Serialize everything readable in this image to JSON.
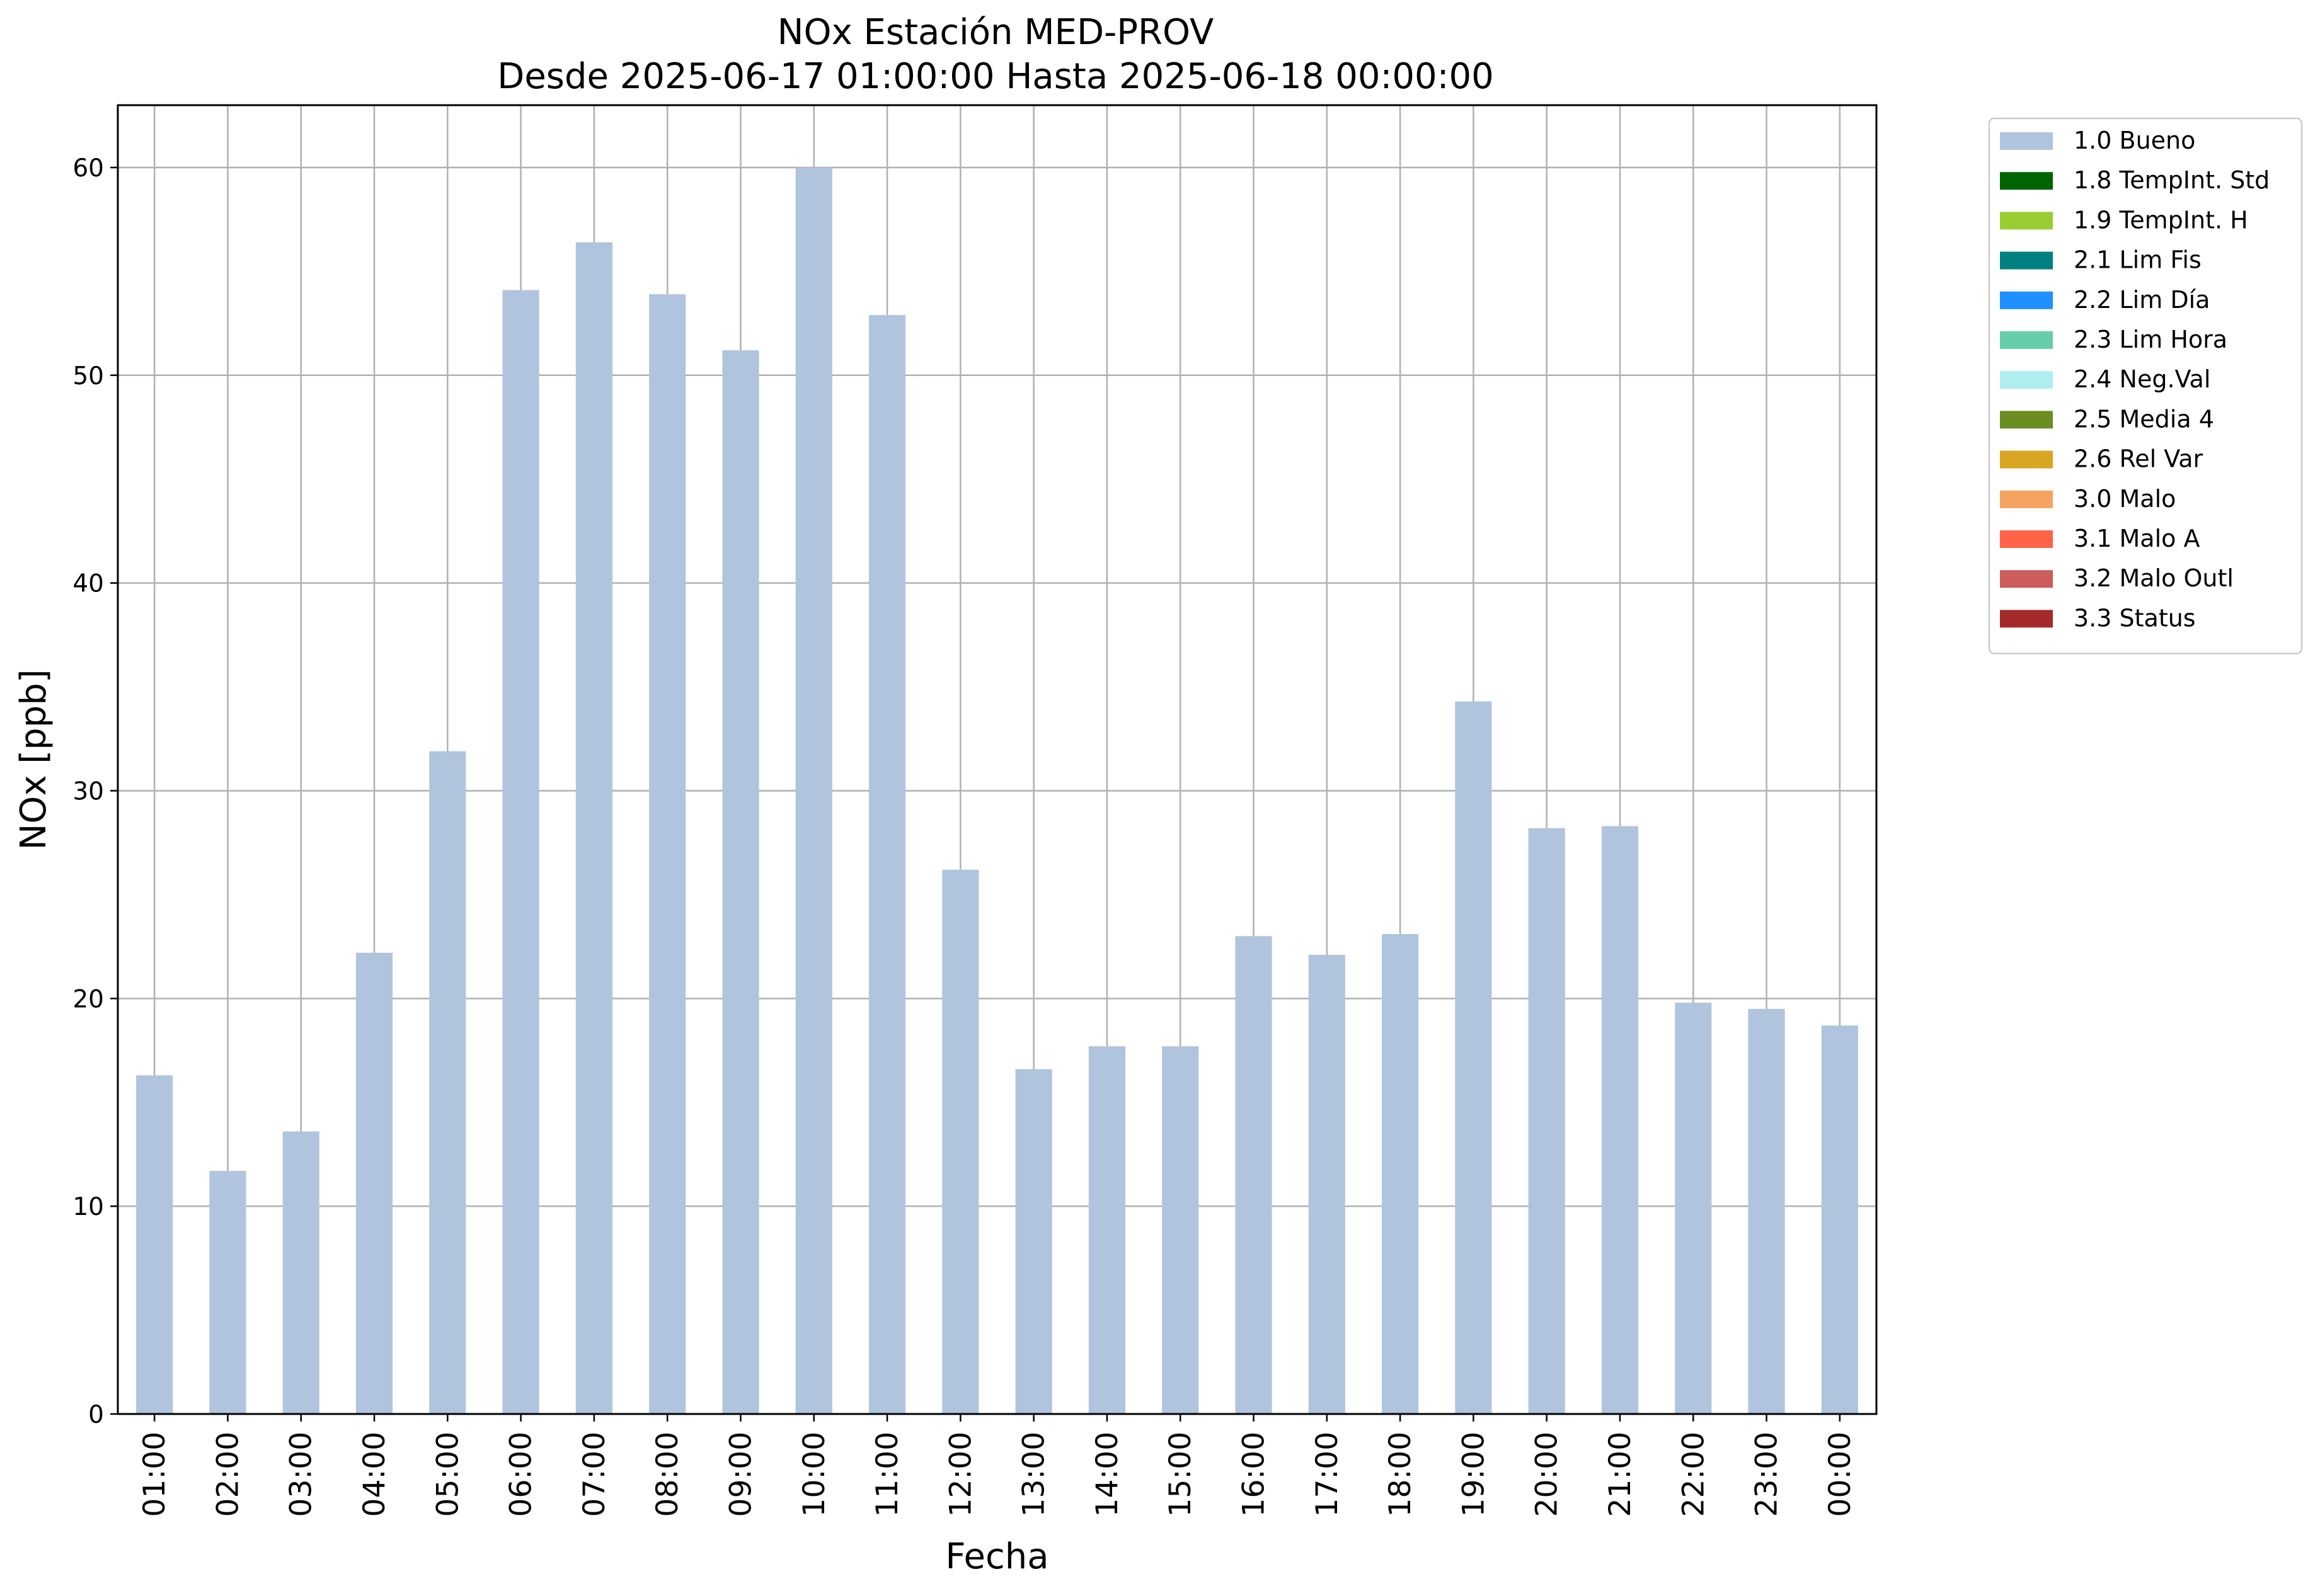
{
  "chart_data": {
    "type": "bar",
    "title": "NOx Estación MED-PROV",
    "subtitle": "Desde 2025-06-17 01:00:00 Hasta 2025-06-18 00:00:00",
    "xlabel": "Fecha",
    "ylabel": "NOx [ppb]",
    "ylim": [
      0,
      63
    ],
    "yticks": [
      0,
      10,
      20,
      30,
      40,
      50,
      60
    ],
    "grid": true,
    "legend_position": "outside-top-right",
    "categories": [
      "01:00",
      "02:00",
      "03:00",
      "04:00",
      "05:00",
      "06:00",
      "07:00",
      "08:00",
      "09:00",
      "10:00",
      "11:00",
      "12:00",
      "13:00",
      "14:00",
      "15:00",
      "16:00",
      "17:00",
      "18:00",
      "19:00",
      "20:00",
      "21:00",
      "22:00",
      "23:00",
      "00:00"
    ],
    "series": [
      {
        "name": "1.0 Bueno",
        "color": "#b0c4de",
        "values": [
          16.3,
          11.7,
          13.6,
          22.2,
          31.9,
          54.1,
          56.4,
          53.9,
          51.2,
          60.0,
          52.9,
          26.2,
          16.6,
          17.7,
          17.7,
          23.0,
          22.1,
          23.1,
          34.3,
          28.2,
          28.3,
          19.8,
          19.5,
          18.7
        ]
      }
    ],
    "legend": [
      {
        "label": "1.0 Bueno",
        "color": "#b0c4de"
      },
      {
        "label": "1.8 TempInt. Std",
        "color": "#006400"
      },
      {
        "label": "1.9 TempInt. H",
        "color": "#9acd32"
      },
      {
        "label": "2.1 Lim Fis",
        "color": "#008080"
      },
      {
        "label": "2.2 Lim Día",
        "color": "#1e90ff"
      },
      {
        "label": "2.3 Lim Hora",
        "color": "#66cdaa"
      },
      {
        "label": "2.4 Neg.Val",
        "color": "#afeeee"
      },
      {
        "label": "2.5 Media 4",
        "color": "#6b8e23"
      },
      {
        "label": "2.6 Rel Var",
        "color": "#daa520"
      },
      {
        "label": "3.0 Malo",
        "color": "#f4a460"
      },
      {
        "label": "3.1 Malo A",
        "color": "#ff6347"
      },
      {
        "label": "3.2 Malo Outl",
        "color": "#cd5c5c"
      },
      {
        "label": "3.3 Status",
        "color": "#a52a2a"
      }
    ]
  }
}
